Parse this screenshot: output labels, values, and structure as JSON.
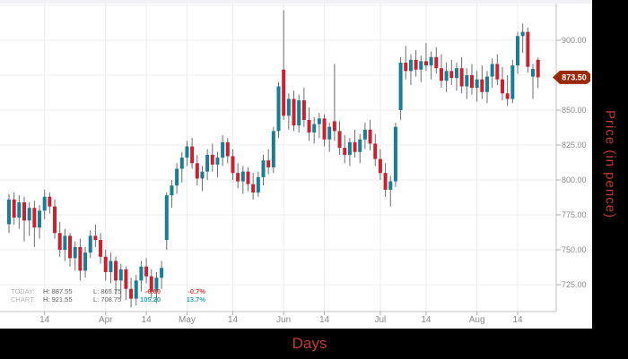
{
  "titles": {
    "x": "Days",
    "y": "Price (in pence)"
  },
  "price_tag": {
    "value": "873.50"
  },
  "legend": {
    "rows": [
      {
        "label": "TODAY:",
        "high": "H: 887.55",
        "low": "L: 865.75",
        "change": "-6.00",
        "change_pct": "-0.7%"
      },
      {
        "label": "CHART:",
        "high": "H: 921.55",
        "low": "L: 708.75",
        "change": "105.20",
        "change_pct": "13.7%"
      }
    ]
  },
  "colors": {
    "up": "#177e93",
    "down": "#c9212f",
    "wick": "#6e6e6e",
    "grid": "#ececef",
    "axis_line": "#c2c2c2",
    "tick": "#adadad",
    "tick_text": "#8a8a8a",
    "tag_bg": "#992a08",
    "tag_text": "#ffffff",
    "axis_title": "#c43a2c",
    "legend_neg": "#e0453a",
    "legend_pos": "#28a5ba"
  },
  "chart_data": {
    "type": "candlestick",
    "title": "",
    "xlabel": "Days",
    "ylabel": "Price (in pence)",
    "y_range": [
      700,
      925
    ],
    "grid": true,
    "last_price": 873.5,
    "today_summary": {
      "high": 887.55,
      "low": 865.75,
      "change": -6.0,
      "change_pct": "-0.7%"
    },
    "chart_summary": {
      "high": 921.55,
      "low": 708.75,
      "change": 105.2,
      "change_pct": "13.7%"
    },
    "y_ticks": [
      {
        "price": 900,
        "label": "900.00"
      },
      {
        "price": 875,
        "label": "875.00"
      },
      {
        "price": 850,
        "label": "850.00"
      },
      {
        "price": 825,
        "label": "825.00"
      },
      {
        "price": 800,
        "label": "800.00"
      },
      {
        "price": 775,
        "label": "775.00"
      },
      {
        "price": 750,
        "label": "750.00"
      },
      {
        "price": 725,
        "label": "725.00"
      }
    ],
    "y_grid_prices": [
      925,
      900,
      875,
      850,
      825,
      800,
      775,
      750,
      725
    ],
    "x_ticks": [
      {
        "index": 7,
        "label": "14"
      },
      {
        "index": 19,
        "label": "Apr"
      },
      {
        "index": 27,
        "label": "14"
      },
      {
        "index": 35,
        "label": "May"
      },
      {
        "index": 44,
        "label": "14"
      },
      {
        "index": 54,
        "label": "Jun"
      },
      {
        "index": 62,
        "label": "14"
      },
      {
        "index": 73,
        "label": "Jul"
      },
      {
        "index": 82,
        "label": "14"
      },
      {
        "index": 92,
        "label": "Aug"
      },
      {
        "index": 100,
        "label": "14"
      }
    ],
    "ohlc": [
      [
        768.3,
        790,
        762,
        786
      ],
      [
        786,
        791,
        768,
        773
      ],
      [
        773,
        789,
        765,
        784
      ],
      [
        784,
        788,
        756,
        771
      ],
      [
        771,
        784,
        760,
        780
      ],
      [
        780,
        785,
        752,
        766
      ],
      [
        766,
        782,
        758,
        778
      ],
      [
        778,
        793,
        772,
        788
      ],
      [
        788,
        791,
        776,
        781
      ],
      [
        781,
        786,
        758,
        762
      ],
      [
        762,
        770,
        745,
        750
      ],
      [
        750,
        765,
        742,
        760
      ],
      [
        760,
        762,
        738,
        744
      ],
      [
        744,
        756,
        735,
        752
      ],
      [
        752,
        758,
        728,
        735
      ],
      [
        735,
        752,
        730,
        748
      ],
      [
        748,
        764,
        744,
        760
      ],
      [
        760,
        768,
        752,
        757
      ],
      [
        757,
        762,
        740,
        745
      ],
      [
        745,
        750,
        728,
        734
      ],
      [
        734,
        748,
        726,
        742
      ],
      [
        742,
        745,
        718,
        728
      ],
      [
        728,
        740,
        715,
        736
      ],
      [
        736,
        738,
        714,
        722
      ],
      [
        722,
        730,
        708.75,
        715
      ],
      [
        715,
        732,
        710,
        728
      ],
      [
        728,
        742,
        720,
        738
      ],
      [
        738,
        744,
        726,
        731
      ],
      [
        731,
        736,
        715,
        720
      ],
      [
        720,
        734,
        712,
        730
      ],
      [
        730,
        742,
        722,
        737
      ],
      [
        757,
        791,
        750,
        789
      ],
      [
        789,
        800,
        780,
        796
      ],
      [
        796,
        812,
        790,
        808
      ],
      [
        808,
        820,
        798,
        816
      ],
      [
        816,
        828,
        810,
        824
      ],
      [
        824,
        830,
        808,
        812
      ],
      [
        812,
        818,
        796,
        801
      ],
      [
        801,
        810,
        792,
        806
      ],
      [
        806,
        822,
        800,
        818
      ],
      [
        818,
        826,
        806,
        811
      ],
      [
        811,
        820,
        802,
        816
      ],
      [
        816,
        832,
        810,
        827
      ],
      [
        827,
        830,
        812,
        817
      ],
      [
        817,
        822,
        800,
        805
      ],
      [
        805,
        812,
        794,
        799
      ],
      [
        799,
        810,
        790,
        806
      ],
      [
        806,
        809,
        792,
        797
      ],
      [
        797,
        805,
        786,
        791
      ],
      [
        791,
        806,
        788,
        802
      ],
      [
        802,
        818,
        796,
        814
      ],
      [
        814,
        822,
        804,
        809
      ],
      [
        809,
        838,
        805,
        835
      ],
      [
        835,
        870,
        830,
        867
      ],
      [
        879,
        921.55,
        843,
        846
      ],
      [
        846,
        862,
        836,
        858
      ],
      [
        858,
        864,
        835,
        839
      ],
      [
        839,
        861,
        834,
        857
      ],
      [
        857,
        866,
        838,
        843
      ],
      [
        843,
        852,
        828,
        834
      ],
      [
        834,
        845,
        826,
        840
      ],
      [
        840,
        848,
        830,
        844
      ],
      [
        844,
        847,
        824,
        829
      ],
      [
        829,
        841,
        820,
        838
      ],
      [
        842,
        883,
        828,
        835
      ],
      [
        835,
        842,
        818,
        823
      ],
      [
        823,
        832,
        812,
        818
      ],
      [
        818,
        830,
        810,
        827
      ],
      [
        827,
        836,
        816,
        820
      ],
      [
        820,
        833,
        812,
        829
      ],
      [
        829,
        841,
        822,
        836
      ],
      [
        836,
        843,
        821,
        826
      ],
      [
        826,
        833,
        810,
        815
      ],
      [
        815,
        822,
        800,
        805
      ],
      [
        805,
        812,
        788,
        793
      ],
      [
        793,
        803,
        781,
        799
      ],
      [
        799,
        841,
        795,
        838
      ],
      [
        850,
        888,
        843,
        884
      ],
      [
        884,
        896,
        872,
        878
      ],
      [
        878,
        890,
        868,
        886
      ],
      [
        886,
        893,
        874,
        879
      ],
      [
        879,
        889,
        870,
        885
      ],
      [
        885,
        898,
        878,
        882
      ],
      [
        882,
        892,
        872,
        888
      ],
      [
        888,
        895,
        876,
        880
      ],
      [
        880,
        890,
        866,
        871
      ],
      [
        871,
        884,
        863,
        878
      ],
      [
        878,
        886,
        868,
        873
      ],
      [
        873,
        884,
        864,
        880
      ],
      [
        880,
        888,
        862,
        867
      ],
      [
        867,
        880,
        858,
        875
      ],
      [
        875,
        883,
        861,
        866
      ],
      [
        866,
        878,
        856,
        872
      ],
      [
        872,
        882,
        858,
        863
      ],
      [
        863,
        878,
        855,
        874
      ],
      [
        874,
        887,
        866,
        883
      ],
      [
        883,
        890,
        868,
        872
      ],
      [
        872,
        881,
        857,
        862
      ],
      [
        862,
        875,
        853,
        858
      ],
      [
        858,
        886,
        855,
        882
      ],
      [
        882,
        906,
        876,
        903
      ],
      [
        903,
        912,
        891,
        906
      ],
      [
        906,
        909,
        877,
        881
      ],
      [
        874,
        883,
        858,
        879.5
      ],
      [
        886,
        887.55,
        865.75,
        873.5
      ]
    ]
  }
}
